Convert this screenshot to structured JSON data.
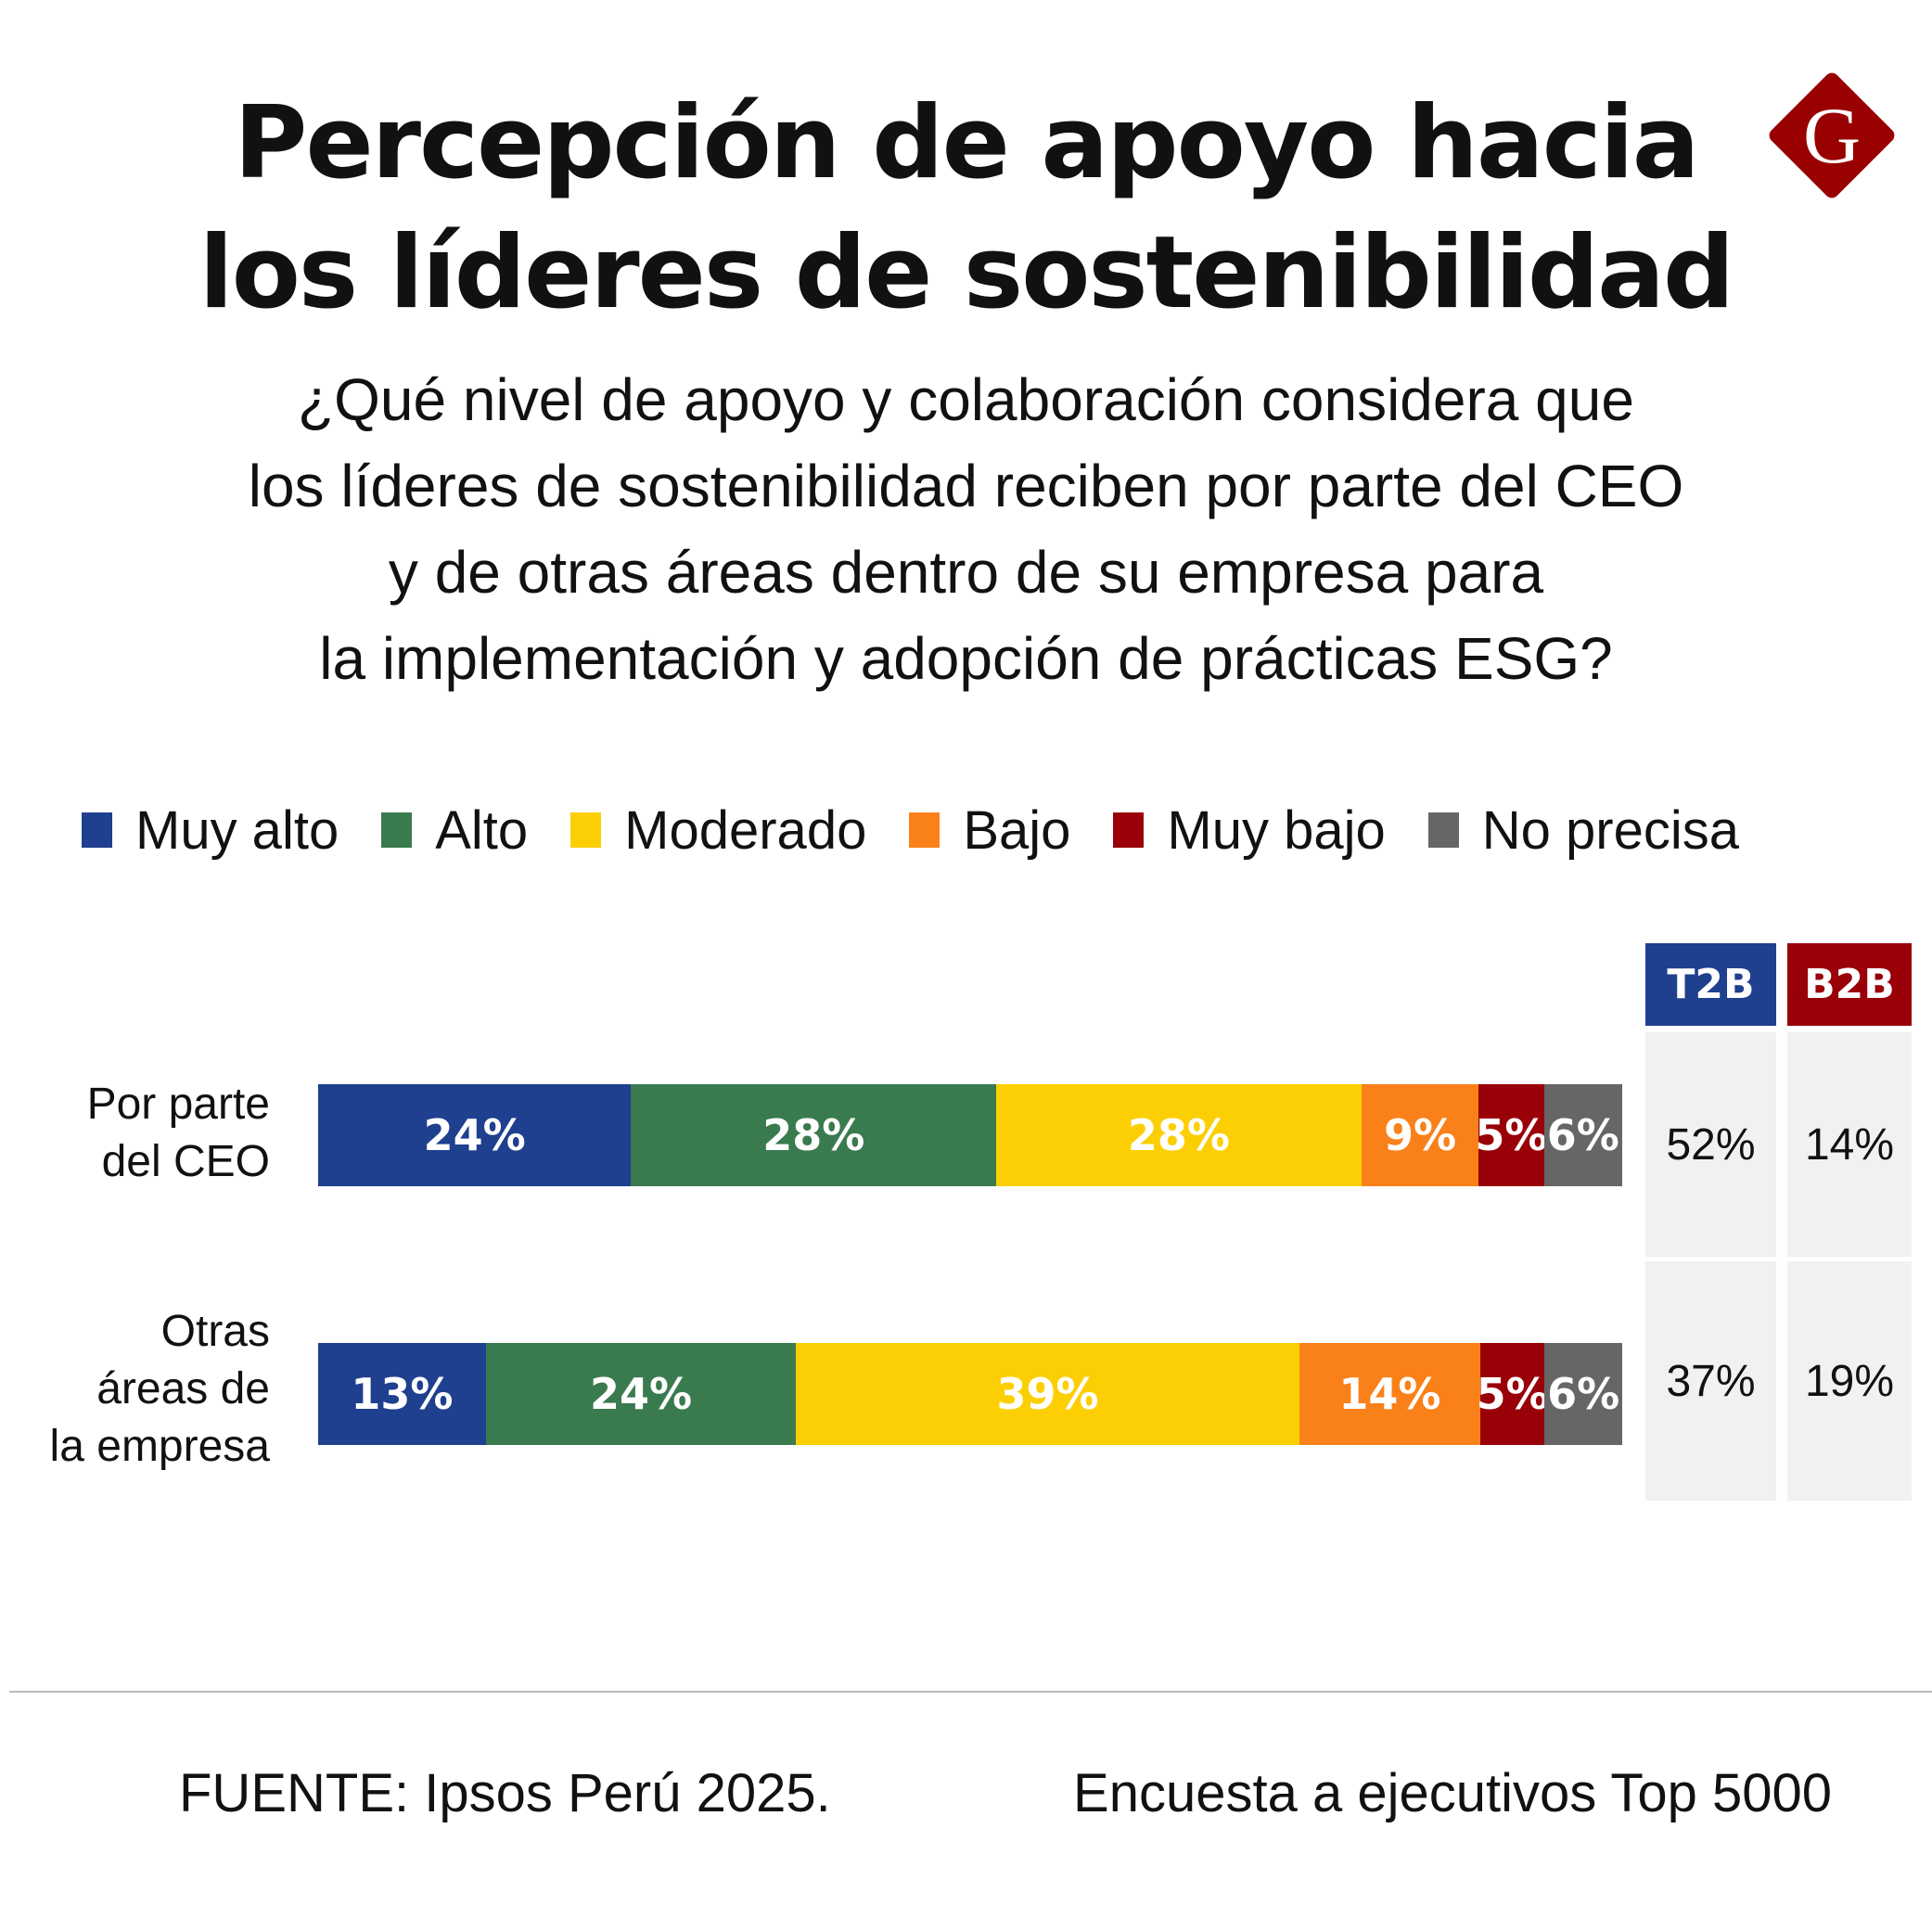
{
  "title": [
    "Percepción de apoyo hacia",
    "los líderes de sostenibilidad"
  ],
  "subtitle": [
    "¿Qué nivel de apoyo y colaboración considera que",
    "los líderes de sostenibilidad reciben por parte del CEO",
    "y de otras áreas dentro de su empresa para",
    "la implementación y adopción de prácticas ESG?"
  ],
  "logo": {
    "letter": "G",
    "color": "#990000"
  },
  "chart_data": {
    "type": "bar",
    "orientation": "horizontal",
    "stacked": true,
    "unit": "%",
    "categories": [
      "Por parte del CEO",
      "Otras áreas de la empresa"
    ],
    "category_lines": [
      [
        "Por parte",
        "del CEO"
      ],
      [
        "Otras",
        "áreas de",
        "la empresa"
      ]
    ],
    "legend_position": "top",
    "series": [
      {
        "name": "Muy alto",
        "color": "#1f3f8f",
        "values": [
          24,
          13
        ]
      },
      {
        "name": "Alto",
        "color": "#3a7a4f",
        "values": [
          28,
          24
        ]
      },
      {
        "name": "Moderado",
        "color": "#fccf04",
        "values": [
          28,
          39
        ]
      },
      {
        "name": "Bajo",
        "color": "#fa8119",
        "values": [
          9,
          14
        ]
      },
      {
        "name": "Muy bajo",
        "color": "#990008",
        "values": [
          5,
          5
        ]
      },
      {
        "name": "No precisa",
        "color": "#666666",
        "values": [
          6,
          6
        ]
      }
    ],
    "summary": {
      "headers": [
        {
          "label": "T2B",
          "color": "#1f3f8f"
        },
        {
          "label": "B2B",
          "color": "#990008"
        }
      ],
      "values": [
        [
          "52%",
          "14%"
        ],
        [
          "37%",
          "19%"
        ]
      ]
    }
  },
  "footer": {
    "source": "FUENTE: Ipsos Perú 2025.",
    "note": "Encuesta a ejecutivos Top 5000"
  }
}
